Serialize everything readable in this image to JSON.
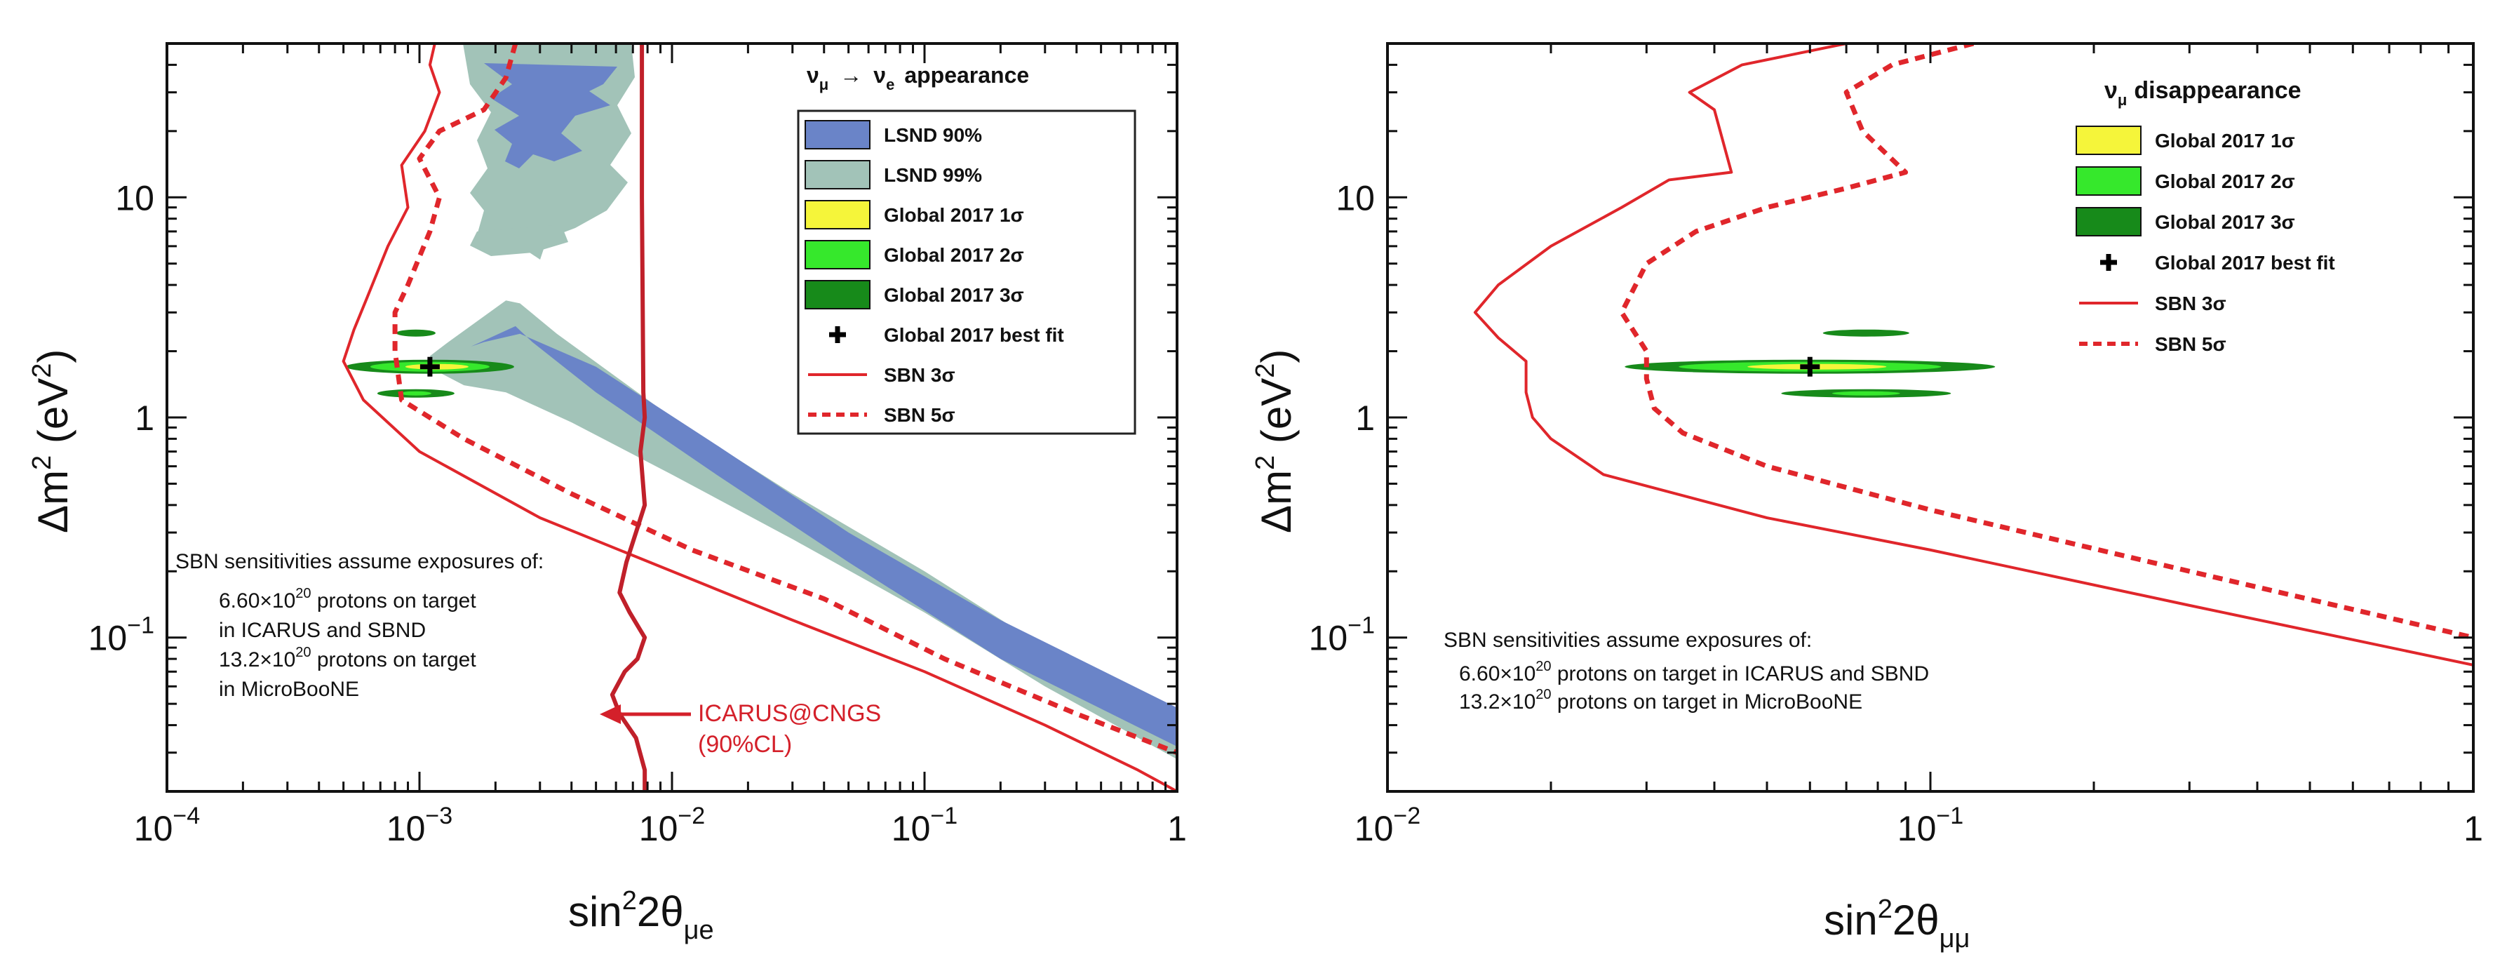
{
  "chart_data": [
    {
      "type": "line",
      "title": "ν_μ → ν_e appearance",
      "title_parts": {
        "nu": "ν",
        "mu": "μ",
        "arrow": "→",
        "e": "e",
        "word": "appearance"
      },
      "xlabel": {
        "base": "sin",
        "sup": "2",
        "mid": "2θ",
        "sub": "μe"
      },
      "ylabel": {
        "delta": "Δm",
        "sup1": "2",
        "unit": " (eV",
        "sup2": "2",
        "close": ")"
      },
      "xscale": "log",
      "yscale": "log",
      "xlim": [
        0.0001,
        1
      ],
      "ylim": [
        0.02,
        50
      ],
      "xticks": [
        {
          "value": 0.0001,
          "base": "10",
          "exp": "−4"
        },
        {
          "value": 0.001,
          "base": "10",
          "exp": "−3"
        },
        {
          "value": 0.01,
          "base": "10",
          "exp": "−2"
        },
        {
          "value": 0.1,
          "base": "10",
          "exp": "−1"
        },
        {
          "value": 1,
          "base": "1",
          "exp": ""
        }
      ],
      "yticks": [
        {
          "value": 0.1,
          "base": "10",
          "exp": "−1"
        },
        {
          "value": 1,
          "base": "1",
          "exp": ""
        },
        {
          "value": 10,
          "base": "10",
          "exp": ""
        }
      ],
      "legend_position": "top-right",
      "legend": [
        {
          "label": "LSND 90%",
          "kind": "box",
          "color": "#6a84c8"
        },
        {
          "label": "LSND 99%",
          "kind": "box",
          "color": "#a2c3b8"
        },
        {
          "label": "Global 2017 1σ",
          "kind": "box",
          "color": "#f5f53a"
        },
        {
          "label": "Global 2017 2σ",
          "kind": "box",
          "color": "#36e82c"
        },
        {
          "label": "Global 2017 3σ",
          "kind": "box",
          "color": "#178a1a"
        },
        {
          "label": "Global 2017 best fit",
          "kind": "cross",
          "color": "#000000"
        },
        {
          "label": "SBN 3σ",
          "kind": "line",
          "color": "#e0262b"
        },
        {
          "label": "SBN 5σ",
          "kind": "dash",
          "color": "#e0262b"
        }
      ],
      "series": [
        {
          "name": "SBN 3σ",
          "style": "solid",
          "color": "#e0262b",
          "x": [
            0.00115,
            0.0011,
            0.0012,
            0.00105,
            0.00085,
            0.0009,
            0.00075,
            0.00062,
            0.00055,
            0.0005,
            0.0006,
            0.001,
            0.003,
            0.01,
            0.03,
            0.1,
            0.3,
            0.7,
            1.0
          ],
          "y": [
            50,
            40,
            30,
            20,
            14,
            9,
            6,
            3.5,
            2.5,
            1.8,
            1.2,
            0.7,
            0.35,
            0.2,
            0.12,
            0.07,
            0.04,
            0.025,
            0.02
          ]
        },
        {
          "name": "SBN 5σ",
          "style": "dashed",
          "color": "#e0262b",
          "x": [
            0.0024,
            0.0022,
            0.0018,
            0.0012,
            0.001,
            0.0012,
            0.0011,
            0.0009,
            0.0008,
            0.0008,
            0.00085,
            0.0015,
            0.004,
            0.012,
            0.04,
            0.12,
            0.4,
            1.0
          ],
          "y": [
            50,
            35,
            25,
            20,
            15,
            10,
            7,
            4,
            3,
            2,
            1.2,
            0.8,
            0.45,
            0.25,
            0.15,
            0.08,
            0.045,
            0.03
          ]
        },
        {
          "name": "ICARUS@CNGS (90%CL)",
          "style": "solid",
          "color": "#c0202a",
          "x": [
            0.0076,
            0.0076,
            0.0077,
            0.0078,
            0.0075,
            0.0078,
            0.0072,
            0.0066,
            0.0062,
            0.0068,
            0.0078,
            0.0073,
            0.0065,
            0.0058,
            0.0062,
            0.0072,
            0.0078,
            0.0078
          ],
          "y": [
            50,
            10,
            1.3,
            1.0,
            0.7,
            0.4,
            0.3,
            0.22,
            0.16,
            0.13,
            0.1,
            0.08,
            0.07,
            0.055,
            0.045,
            0.035,
            0.025,
            0.02
          ]
        }
      ],
      "regions": [
        {
          "name": "LSND 99%",
          "color": "#a2c3b8",
          "x": [
            0.0013,
            0.0022,
            0.0025,
            0.0035,
            0.01,
            0.03,
            0.1,
            0.3,
            1.0,
            1.0,
            0.3,
            0.1,
            0.03,
            0.01,
            0.004,
            0.0022,
            0.0015,
            0.0012,
            0.0011
          ],
          "y": [
            2.2,
            3.4,
            3.3,
            2.4,
            1.0,
            0.45,
            0.2,
            0.09,
            0.045,
            0.028,
            0.06,
            0.13,
            0.28,
            0.55,
            0.95,
            1.3,
            1.4,
            1.6,
            1.9
          ]
        },
        {
          "name": "LSND 90%",
          "color": "#6a84c8",
          "x": [
            0.0016,
            0.0024,
            0.0028,
            0.005,
            0.015,
            0.05,
            0.2,
            1.0,
            1.0,
            0.2,
            0.05,
            0.015,
            0.005,
            0.0025,
            0.0018
          ],
          "y": [
            2.1,
            2.6,
            2.2,
            1.3,
            0.55,
            0.22,
            0.08,
            0.032,
            0.048,
            0.12,
            0.3,
            0.75,
            1.7,
            2.4,
            2.2
          ]
        }
      ],
      "best_fit": {
        "x": 0.0011,
        "y": 1.7
      },
      "annotations": {
        "sbn_title": "SBN sensitivities assume exposures of:",
        "line1": {
          "pre": "6.60×10",
          "sup": "20",
          "post": " protons on target"
        },
        "line2": "in ICARUS and SBND",
        "line3": {
          "pre": "13.2×10",
          "sup": "20",
          "post": " protons on target"
        },
        "line4": "in MicroBooNE",
        "icarus_1": "ICARUS@CNGS",
        "icarus_2": "(90%CL)"
      }
    },
    {
      "type": "line",
      "title": "ν_μ disappearance",
      "title_parts": {
        "nu": "ν",
        "mu": "μ",
        "word": "disappearance"
      },
      "xlabel": {
        "base": "sin",
        "sup": "2",
        "mid": "2θ",
        "sub": "μμ"
      },
      "ylabel": {
        "delta": "Δm",
        "sup1": "2",
        "unit": " (eV",
        "sup2": "2",
        "close": ")"
      },
      "xscale": "log",
      "yscale": "log",
      "xlim": [
        0.01,
        1
      ],
      "ylim": [
        0.02,
        50
      ],
      "xticks": [
        {
          "value": 0.01,
          "base": "10",
          "exp": "−2"
        },
        {
          "value": 0.1,
          "base": "10",
          "exp": "−1"
        },
        {
          "value": 1,
          "base": "1",
          "exp": ""
        }
      ],
      "yticks": [
        {
          "value": 0.1,
          "base": "10",
          "exp": "−1"
        },
        {
          "value": 1,
          "base": "1",
          "exp": ""
        },
        {
          "value": 10,
          "base": "10",
          "exp": ""
        }
      ],
      "legend_position": "top-right",
      "legend": [
        {
          "label": "Global 2017 1σ",
          "kind": "box",
          "color": "#f5f53a"
        },
        {
          "label": "Global 2017 2σ",
          "kind": "box",
          "color": "#36e82c"
        },
        {
          "label": "Global 2017 3σ",
          "kind": "box",
          "color": "#178a1a"
        },
        {
          "label": "Global 2017 best fit",
          "kind": "cross",
          "color": "#000000"
        },
        {
          "label": "SBN 3σ",
          "kind": "line",
          "color": "#e0262b"
        },
        {
          "label": "SBN 5σ",
          "kind": "dash",
          "color": "#e0262b"
        }
      ],
      "series": [
        {
          "name": "SBN 3σ",
          "style": "solid",
          "color": "#e0262b",
          "x": [
            0.07,
            0.045,
            0.036,
            0.04,
            0.043,
            0.033,
            0.027,
            0.02,
            0.016,
            0.0145,
            0.016,
            0.018,
            0.018,
            0.0185,
            0.02,
            0.025,
            0.05,
            0.1,
            0.3,
            1.0
          ],
          "y": [
            50,
            40,
            30,
            25,
            13,
            12,
            9,
            6,
            4,
            3,
            2.3,
            1.8,
            1.3,
            1.0,
            0.8,
            0.55,
            0.35,
            0.25,
            0.14,
            0.075
          ]
        },
        {
          "name": "SBN 5σ",
          "style": "dashed",
          "color": "#e0262b",
          "x": [
            0.12,
            0.085,
            0.07,
            0.075,
            0.09,
            0.07,
            0.05,
            0.037,
            0.03,
            0.027,
            0.03,
            0.03,
            0.031,
            0.035,
            0.05,
            0.1,
            0.3,
            1.0
          ],
          "y": [
            50,
            40,
            30,
            20,
            13,
            11,
            9,
            7,
            5,
            3,
            2,
            1.5,
            1.1,
            0.85,
            0.6,
            0.38,
            0.2,
            0.1
          ]
        }
      ],
      "best_fit": {
        "x": 0.06,
        "y": 1.7
      },
      "annotations": {
        "sbn_title": "SBN sensitivities assume exposures of:",
        "line1": {
          "pre": "6.60×10",
          "sup": "20",
          "post": " protons on target in ICARUS and SBND"
        },
        "line2": {
          "pre": "13.2×10",
          "sup": "20",
          "post": " protons on target in MicroBooNE"
        }
      }
    }
  ]
}
